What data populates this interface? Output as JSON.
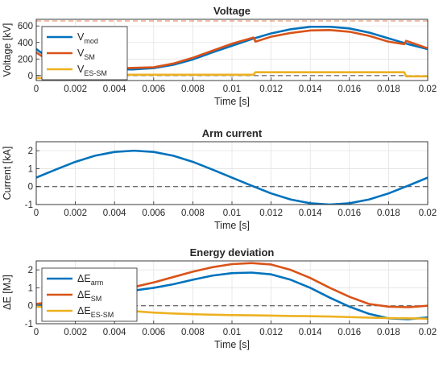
{
  "chart_data": [
    {
      "type": "line",
      "title": "Voltage",
      "xlabel": "Time [s]",
      "ylabel": "Voltage [kV]",
      "xlim": [
        0,
        0.02
      ],
      "ylim": [
        -60,
        680
      ],
      "xticks": [
        "0",
        "0.002",
        "0.004",
        "0.006",
        "0.008",
        "0.01",
        "0.012",
        "0.014",
        "0.016",
        "0.018",
        "0.02"
      ],
      "yticks": [
        "0",
        "200",
        "400",
        "600"
      ],
      "grid": true,
      "legend_position": "top-left",
      "series": [
        {
          "name": "V",
          "name_sub": "mod",
          "color": "#0072BD",
          "x": [
            0,
            0.001,
            0.002,
            0.003,
            0.004,
            0.005,
            0.006,
            0.007,
            0.008,
            0.009,
            0.01,
            0.011,
            0.012,
            0.013,
            0.014,
            0.015,
            0.016,
            0.017,
            0.018,
            0.019,
            0.02
          ],
          "y": [
            320,
            150,
            95,
            75,
            75,
            75,
            90,
            130,
            195,
            280,
            360,
            440,
            510,
            560,
            590,
            590,
            570,
            520,
            450,
            380,
            320
          ]
        },
        {
          "name": "V",
          "name_sub": "SM",
          "color": "#D95319",
          "x": [
            0,
            0.001,
            0.002,
            0.0045,
            0.0046,
            0.006,
            0.007,
            0.008,
            0.009,
            0.01,
            0.0111,
            0.0112,
            0.012,
            0.013,
            0.014,
            0.015,
            0.016,
            0.017,
            0.018,
            0.0188,
            0.0189,
            0.02
          ],
          "y": [
            280,
            120,
            65,
            60,
            90,
            100,
            145,
            215,
            300,
            385,
            460,
            410,
            470,
            515,
            545,
            550,
            530,
            480,
            410,
            380,
            420,
            330
          ]
        },
        {
          "name": "V",
          "name_sub": "ES-SM",
          "color": "#EDB120",
          "x": [
            0,
            0.0045,
            0.0046,
            0.0111,
            0.0112,
            0.0188,
            0.0189,
            0.02
          ],
          "y": [
            -30,
            -30,
            10,
            10,
            40,
            40,
            -10,
            -10
          ]
        }
      ],
      "reference_lines": [
        {
          "y": 660,
          "color": "#D95319",
          "style": "dashed"
        },
        {
          "y": 0,
          "color": "#000000",
          "style": "dashed"
        }
      ]
    },
    {
      "type": "line",
      "title": "Arm current",
      "xlabel": "Time [s]",
      "ylabel": "Current [kA]",
      "xlim": [
        0,
        0.02
      ],
      "ylim": [
        -1,
        2.5
      ],
      "xticks": [
        "0",
        "0.002",
        "0.004",
        "0.006",
        "0.008",
        "0.01",
        "0.012",
        "0.014",
        "0.016",
        "0.018",
        "0.02"
      ],
      "yticks": [
        "-1",
        "0",
        "1",
        "2"
      ],
      "grid": true,
      "series": [
        {
          "color": "#0072BD",
          "x": [
            0,
            0.001,
            0.002,
            0.003,
            0.004,
            0.005,
            0.006,
            0.007,
            0.008,
            0.009,
            0.01,
            0.011,
            0.012,
            0.013,
            0.014,
            0.015,
            0.016,
            0.017,
            0.018,
            0.019,
            0.02
          ],
          "y": [
            0.5,
            0.95,
            1.38,
            1.72,
            1.93,
            2.0,
            1.93,
            1.72,
            1.38,
            0.95,
            0.5,
            0.05,
            -0.38,
            -0.72,
            -0.93,
            -1.0,
            -0.93,
            -0.72,
            -0.38,
            0.05,
            0.5
          ]
        }
      ],
      "reference_lines": [
        {
          "y": 0,
          "color": "#000000",
          "style": "dashed"
        }
      ]
    },
    {
      "type": "line",
      "title": "Energy deviation",
      "xlabel": "Time [s]",
      "ylabel": "ΔE [MJ]",
      "xlim": [
        0,
        0.02
      ],
      "ylim": [
        -1,
        2.5
      ],
      "xticks": [
        "0",
        "0.002",
        "0.004",
        "0.006",
        "0.008",
        "0.01",
        "0.012",
        "0.014",
        "0.016",
        "0.018",
        "0.02"
      ],
      "yticks": [
        "-1",
        "0",
        "1",
        "2"
      ],
      "grid": true,
      "legend_position": "top-left",
      "series": [
        {
          "name": "ΔE",
          "name_sub": "arm",
          "color": "#0072BD",
          "x": [
            0,
            0.001,
            0.002,
            0.003,
            0.004,
            0.005,
            0.006,
            0.007,
            0.008,
            0.009,
            0.01,
            0.011,
            0.012,
            0.013,
            0.014,
            0.015,
            0.016,
            0.017,
            0.018,
            0.019,
            0.02
          ],
          "y": [
            0.0,
            0.1,
            0.3,
            0.55,
            0.75,
            0.85,
            1.0,
            1.2,
            1.45,
            1.68,
            1.82,
            1.85,
            1.75,
            1.45,
            1.0,
            0.45,
            -0.05,
            -0.45,
            -0.7,
            -0.75,
            -0.65
          ]
        },
        {
          "name": "ΔE",
          "name_sub": "SM",
          "color": "#D95319",
          "x": [
            0,
            0.001,
            0.002,
            0.003,
            0.004,
            0.005,
            0.006,
            0.007,
            0.008,
            0.009,
            0.01,
            0.011,
            0.012,
            0.013,
            0.014,
            0.015,
            0.016,
            0.017,
            0.018,
            0.019,
            0.02
          ],
          "y": [
            0.1,
            0.25,
            0.45,
            0.7,
            0.9,
            1.05,
            1.3,
            1.6,
            1.9,
            2.15,
            2.32,
            2.38,
            2.3,
            2.0,
            1.55,
            1.0,
            0.5,
            0.1,
            -0.05,
            -0.08,
            0.0
          ]
        },
        {
          "name": "ΔE",
          "name_sub": "ES-SM",
          "color": "#EDB120",
          "x": [
            0,
            0.001,
            0.002,
            0.003,
            0.004,
            0.005,
            0.006,
            0.007,
            0.008,
            0.009,
            0.01,
            0.011,
            0.012,
            0.013,
            0.014,
            0.015,
            0.016,
            0.017,
            0.018,
            0.019,
            0.02
          ],
          "y": [
            -0.05,
            -0.1,
            -0.15,
            -0.2,
            -0.25,
            -0.3,
            -0.38,
            -0.43,
            -0.47,
            -0.5,
            -0.52,
            -0.53,
            -0.55,
            -0.57,
            -0.58,
            -0.6,
            -0.63,
            -0.66,
            -0.69,
            -0.7,
            -0.72
          ]
        }
      ],
      "reference_lines": [
        {
          "y": 0,
          "color": "#000000",
          "style": "dashed"
        }
      ]
    }
  ]
}
